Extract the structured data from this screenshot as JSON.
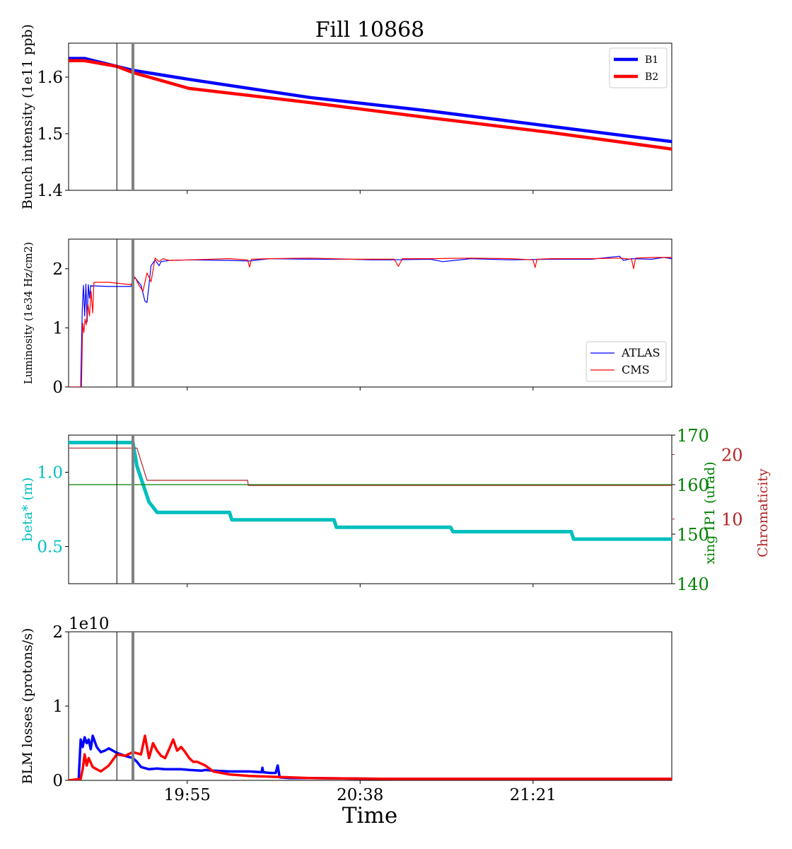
{
  "figure_title": "Fill 10868",
  "x_axis": {
    "label": "Time",
    "range_minutes": [
      0,
      150
    ],
    "tick_positions_minutes": [
      29.5,
      72.5,
      115.5
    ],
    "tick_labels": [
      "19:55",
      "20:38",
      "21:21"
    ]
  },
  "markers": {
    "thin_line_minute": 12,
    "thick_line_minute": 16
  },
  "colors": {
    "b1": "#0000ff",
    "b2": "#ff0000",
    "atlas": "#0000ff",
    "cms": "#ff0000",
    "beta": "#00bfbf",
    "xing": "#008000",
    "chroma": "#b22222",
    "marker_thin": "#000000",
    "marker_thick": "#808080"
  },
  "chart_data": [
    {
      "type": "line",
      "id": "intensity",
      "ylabel": "Bunch intensity (1e11 ppb)",
      "ylim": [
        1.4,
        1.66
      ],
      "yticks": [
        1.4,
        1.5,
        1.6
      ],
      "ytick_labels": [
        "1.4",
        "1.5",
        "1.6"
      ],
      "legend": "top-right",
      "series": [
        {
          "name": "B1",
          "x": [
            0,
            4,
            12,
            16,
            30,
            60,
            90,
            120,
            150
          ],
          "y": [
            1.633,
            1.633,
            1.619,
            1.612,
            1.596,
            1.564,
            1.54,
            1.513,
            1.486
          ]
        },
        {
          "name": "B2",
          "x": [
            0,
            4,
            12,
            16,
            30,
            60,
            90,
            120,
            150
          ],
          "y": [
            1.629,
            1.629,
            1.619,
            1.608,
            1.58,
            1.555,
            1.528,
            1.502,
            1.473
          ]
        }
      ]
    },
    {
      "type": "line",
      "id": "luminosity",
      "ylabel": "Luminosity (1e34 Hz/cm2)",
      "ylim": [
        0,
        2.5
      ],
      "yticks": [
        0,
        1,
        2
      ],
      "ytick_labels": [
        "0",
        "1",
        "2"
      ],
      "legend": "bottom-right",
      "series": [
        {
          "name": "ATLAS",
          "x": [
            0,
            3.0,
            3.4,
            3.7,
            4.0,
            4.3,
            4.6,
            4.9,
            5.2,
            5.5,
            5.8,
            6.0,
            10,
            15.5,
            16.5,
            18,
            19,
            19.5,
            20,
            20.5,
            21.5,
            22.5,
            23,
            25,
            30,
            40,
            45,
            46,
            50,
            60,
            70,
            75,
            80,
            90,
            93,
            100,
            110,
            120,
            130,
            137,
            138,
            140,
            145,
            148,
            150
          ],
          "y": [
            0,
            0,
            1.3,
            1.72,
            1.2,
            1.74,
            1.1,
            1.73,
            1.5,
            1.72,
            1.7,
            1.71,
            1.7,
            1.7,
            1.85,
            1.72,
            1.45,
            1.43,
            1.72,
            2.05,
            2.15,
            2.05,
            2.12,
            2.14,
            2.15,
            2.14,
            2.13,
            2.14,
            2.17,
            2.16,
            2.16,
            2.15,
            2.15,
            2.16,
            2.12,
            2.17,
            2.15,
            2.16,
            2.16,
            2.21,
            2.14,
            2.17,
            2.16,
            2.19,
            2.17
          ]
        },
        {
          "name": "CMS",
          "x": [
            0,
            3.2,
            3.5,
            3.8,
            4.1,
            4.4,
            4.8,
            5.2,
            5.6,
            6.0,
            6.3,
            10,
            15.5,
            16.5,
            17.5,
            18.5,
            19.5,
            20.5,
            21.5,
            22.5,
            23.5,
            25,
            30,
            40,
            44.5,
            45,
            45.5,
            50,
            60,
            70,
            81,
            82,
            83,
            90,
            100,
            110,
            115.5,
            116,
            116.5,
            120,
            130,
            137,
            140,
            140.5,
            141,
            145,
            150
          ],
          "y": [
            0,
            0,
            1.08,
            0.92,
            1.15,
            1.05,
            1.4,
            1.2,
            1.62,
            1.25,
            1.77,
            1.77,
            1.73,
            1.86,
            1.72,
            1.62,
            1.93,
            1.78,
            2.18,
            2.12,
            2.17,
            2.14,
            2.15,
            2.17,
            2.15,
            2.03,
            2.16,
            2.17,
            2.18,
            2.16,
            2.16,
            2.04,
            2.17,
            2.17,
            2.18,
            2.17,
            2.15,
            2.02,
            2.16,
            2.17,
            2.17,
            2.18,
            2.16,
            2.0,
            2.18,
            2.19,
            2.19
          ]
        }
      ]
    },
    {
      "type": "line",
      "id": "optics",
      "ylabel": "beta* (m)",
      "ylim": [
        0.25,
        1.25
      ],
      "yticks": [
        0.5,
        1.0
      ],
      "ytick_labels": [
        "0.5",
        "1.0"
      ],
      "ylabel_right": "xing IP1 (urad)",
      "ylim_right": [
        140,
        170
      ],
      "yticks_right": [
        140,
        150,
        160,
        170
      ],
      "ylabel_right2": "Chromaticity",
      "ylim_right2": [
        0,
        23
      ],
      "yticks_right2": [
        10,
        20
      ],
      "series": [
        {
          "name": "beta*",
          "axis": "left",
          "x": [
            0,
            16,
            17,
            19,
            20,
            22,
            40,
            40.6,
            66,
            66.6,
            95,
            95.6,
            125,
            125.6,
            150
          ],
          "y": [
            1.2,
            1.2,
            1.04,
            0.88,
            0.8,
            0.73,
            0.73,
            0.68,
            0.68,
            0.63,
            0.63,
            0.6,
            0.6,
            0.55,
            0.55
          ]
        },
        {
          "name": "xing IP1",
          "axis": "right",
          "x": [
            0,
            150
          ],
          "y": [
            160,
            160
          ]
        },
        {
          "name": "Chromaticity",
          "axis": "right2",
          "x": [
            0,
            17,
            19.5,
            44.5,
            44.7,
            150
          ],
          "y": [
            21,
            21,
            16,
            16,
            15.2,
            15.2
          ]
        }
      ]
    },
    {
      "type": "line",
      "id": "blm",
      "ylabel": "BLM losses (protons/s)",
      "ylim": [
        0,
        2
      ],
      "yticks": [
        0,
        1,
        2
      ],
      "ytick_labels": [
        "0",
        "1",
        "2"
      ],
      "offset_text": "1e10",
      "series": [
        {
          "name": "B1",
          "x": [
            0,
            2.5,
            3,
            3.5,
            4,
            4.5,
            5,
            5.5,
            6,
            7,
            8,
            9,
            10,
            11,
            12,
            14,
            16,
            17,
            18,
            20,
            22,
            24,
            26,
            28,
            30,
            33,
            34,
            36,
            40,
            45,
            48,
            48.2,
            48.4,
            50,
            51.5,
            52,
            52.5,
            55,
            60,
            80,
            100,
            150
          ],
          "y": [
            0,
            0,
            0.55,
            0.45,
            0.58,
            0.5,
            0.55,
            0.42,
            0.6,
            0.45,
            0.38,
            0.4,
            0.43,
            0.4,
            0.37,
            0.33,
            0.3,
            0.25,
            0.18,
            0.15,
            0.16,
            0.15,
            0.15,
            0.15,
            0.14,
            0.13,
            0.14,
            0.13,
            0.12,
            0.12,
            0.11,
            0.17,
            0.11,
            0.1,
            0.1,
            0.2,
            0.04,
            0.03,
            0.03,
            0.02,
            0.02,
            0.02
          ]
        },
        {
          "name": "B2",
          "x": [
            0,
            3,
            3.5,
            4,
            4.5,
            5,
            6,
            8,
            10,
            12,
            14,
            16,
            18,
            19,
            20,
            21,
            22,
            23,
            24,
            25,
            26,
            27,
            28,
            29,
            30,
            31,
            32,
            34,
            36,
            40,
            45,
            50,
            55,
            60,
            80,
            100,
            150
          ],
          "y": [
            0,
            0.02,
            0.15,
            0.35,
            0.2,
            0.3,
            0.18,
            0.12,
            0.2,
            0.35,
            0.33,
            0.38,
            0.35,
            0.6,
            0.3,
            0.5,
            0.4,
            0.33,
            0.3,
            0.42,
            0.55,
            0.4,
            0.45,
            0.38,
            0.3,
            0.25,
            0.25,
            0.2,
            0.12,
            0.08,
            0.06,
            0.05,
            0.04,
            0.03,
            0.02,
            0.02,
            0.02
          ]
        }
      ]
    }
  ]
}
